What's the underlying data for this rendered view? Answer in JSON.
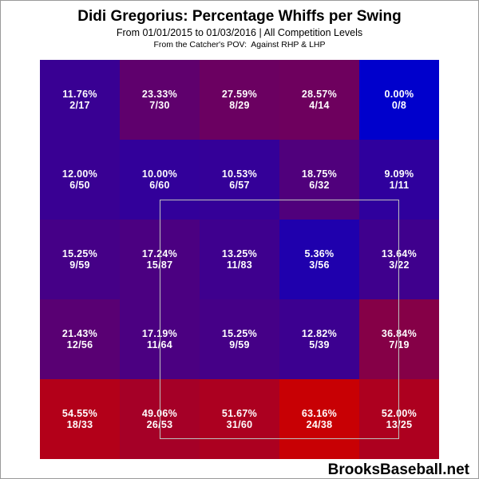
{
  "title": "Didi Gregorius: Percentage Whiffs per Swing",
  "subtitle": "From 01/01/2015 to 01/03/2016 | All Competition Levels",
  "note": "From the Catcher's POV:  Against RHP & LHP",
  "watermark": "BrooksBaseball.net",
  "colors": {
    "low": "#0000cc",
    "high": "#cc0000",
    "border": "#9a9a9a"
  },
  "chart_data": {
    "type": "heatmap",
    "rows": 5,
    "cols": 5,
    "strike_zone": {
      "rows": [
        1,
        3
      ],
      "cols": [
        1,
        3
      ]
    },
    "cells": [
      [
        {
          "pct": "11.76%",
          "count": "2/17"
        },
        {
          "pct": "23.33%",
          "count": "7/30"
        },
        {
          "pct": "27.59%",
          "count": "8/29"
        },
        {
          "pct": "28.57%",
          "count": "4/14"
        },
        {
          "pct": "0.00%",
          "count": "0/8"
        }
      ],
      [
        {
          "pct": "12.00%",
          "count": "6/50"
        },
        {
          "pct": "10.00%",
          "count": "6/60"
        },
        {
          "pct": "10.53%",
          "count": "6/57"
        },
        {
          "pct": "18.75%",
          "count": "6/32"
        },
        {
          "pct": "9.09%",
          "count": "1/11"
        }
      ],
      [
        {
          "pct": "15.25%",
          "count": "9/59"
        },
        {
          "pct": "17.24%",
          "count": "15/87"
        },
        {
          "pct": "13.25%",
          "count": "11/83"
        },
        {
          "pct": "5.36%",
          "count": "3/56"
        },
        {
          "pct": "13.64%",
          "count": "3/22"
        }
      ],
      [
        {
          "pct": "21.43%",
          "count": "12/56"
        },
        {
          "pct": "17.19%",
          "count": "11/64"
        },
        {
          "pct": "15.25%",
          "count": "9/59"
        },
        {
          "pct": "12.82%",
          "count": "5/39"
        },
        {
          "pct": "36.84%",
          "count": "7/19"
        }
      ],
      [
        {
          "pct": "54.55%",
          "count": "18/33"
        },
        {
          "pct": "49.06%",
          "count": "26/53"
        },
        {
          "pct": "51.67%",
          "count": "31/60"
        },
        {
          "pct": "63.16%",
          "count": "24/38"
        },
        {
          "pct": "52.00%",
          "count": "13/25"
        }
      ]
    ]
  }
}
